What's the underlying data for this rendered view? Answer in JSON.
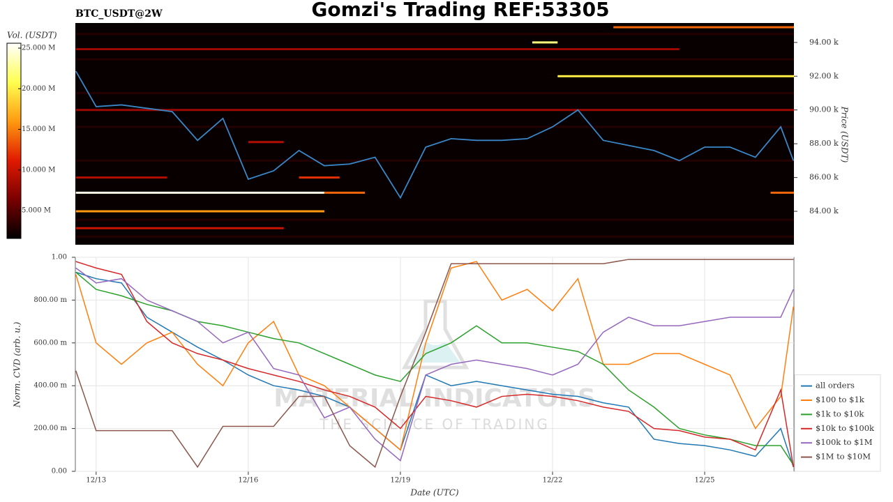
{
  "title": "Gomzi's Trading REF:53305",
  "chart_data": [
    {
      "type": "heatmap",
      "label": "BTC_USDT@2W",
      "x": [
        12.6,
        13.0,
        13.5,
        14.0,
        14.5,
        15.0,
        15.5,
        16.0,
        16.5,
        17.0,
        17.5,
        18.0,
        18.5,
        19.0,
        19.5,
        20.0,
        20.5,
        21.0,
        21.5,
        22.0,
        22.5,
        23.0,
        23.5,
        24.0,
        24.5,
        25.0,
        25.5,
        26.0,
        26.5,
        26.75
      ],
      "values": [
        92.3,
        90.2,
        90.3,
        90.1,
        89.9,
        88.2,
        89.5,
        85.9,
        86.4,
        87.6,
        86.7,
        86.8,
        87.2,
        84.8,
        87.8,
        88.3,
        88.2,
        88.2,
        88.3,
        89.0,
        90.0,
        88.2,
        87.9,
        87.6,
        87.0,
        87.8,
        87.8,
        87.2,
        89.0,
        87.0
      ],
      "color": "#3a87c8",
      "xlim": [
        12.59,
        26.76
      ],
      "y2label": "Price (USDT)",
      "y2lim": [
        82.02,
        95.15
      ],
      "y2ticks": [
        {
          "value": 84,
          "label": "84.00 k"
        },
        {
          "value": 86,
          "label": "86.00 k"
        },
        {
          "value": 88,
          "label": "88.00 k"
        },
        {
          "value": 90,
          "label": "90.00 k"
        },
        {
          "value": 92,
          "label": "92.00 k"
        },
        {
          "value": 94,
          "label": "94.00 k"
        }
      ],
      "bands": [
        {
          "y": 94.5,
          "x": [
            12.6,
            26.76
          ],
          "value": 3
        },
        {
          "y": 93.0,
          "x": [
            12.6,
            26.76
          ],
          "value": 3
        },
        {
          "y": 91.0,
          "x": [
            12.6,
            26.76
          ],
          "value": 3
        },
        {
          "y": 89.0,
          "x": [
            12.6,
            26.76
          ],
          "value": 3
        },
        {
          "y": 87.0,
          "x": [
            12.6,
            26.76
          ],
          "value": 3
        },
        {
          "y": 83.5,
          "x": [
            12.6,
            26.76
          ],
          "value": 3
        },
        {
          "y": 82.5,
          "x": [
            12.6,
            26.76
          ],
          "value": 3
        },
        {
          "y": 94.9,
          "x": [
            23.2,
            26.76
          ],
          "value": 14
        },
        {
          "y": 94.0,
          "x": [
            21.6,
            22.1
          ],
          "value": 22
        },
        {
          "y": 92.0,
          "x": [
            22.1,
            26.76
          ],
          "value": 20
        },
        {
          "y": 93.6,
          "x": [
            12.6,
            24.5
          ],
          "value": 8
        },
        {
          "y": 90.0,
          "x": [
            12.6,
            26.76
          ],
          "value": 8
        },
        {
          "y": 86.0,
          "x": [
            12.6,
            14.4
          ],
          "value": 9
        },
        {
          "y": 86.0,
          "x": [
            17.0,
            17.8
          ],
          "value": 12
        },
        {
          "y": 88.1,
          "x": [
            16.0,
            16.7
          ],
          "value": 9
        },
        {
          "y": 85.1,
          "x": [
            12.6,
            17.5
          ],
          "value": 25
        },
        {
          "y": 85.1,
          "x": [
            17.5,
            18.3
          ],
          "value": 14
        },
        {
          "y": 84.0,
          "x": [
            12.6,
            17.5
          ],
          "value": 16
        },
        {
          "y": 83.0,
          "x": [
            12.6,
            16.7
          ],
          "value": 10
        },
        {
          "y": 85.1,
          "x": [
            26.3,
            26.76
          ],
          "value": 14
        }
      ],
      "colorbar": {
        "label": "Vol. (USDT)",
        "lim": [
          1.57,
          25.6
        ],
        "ticks": [
          {
            "value": 5,
            "label": "5.000 M"
          },
          {
            "value": 10,
            "label": "10.000 M"
          },
          {
            "value": 15,
            "label": "15.000 M"
          },
          {
            "value": 20,
            "label": "20.000 M"
          },
          {
            "value": 25,
            "label": "25.000 M"
          }
        ],
        "colormap": [
          "#000000",
          "#7a0000",
          "#e01a00",
          "#ff9a10",
          "#ffff50",
          "#ffffff"
        ]
      }
    },
    {
      "type": "line",
      "xlabel": "Date (UTC)",
      "ylabel": "Norm. CVD (arb. u.)",
      "x": [
        12.6,
        13.0,
        13.5,
        14.0,
        14.5,
        15.0,
        15.5,
        16.0,
        16.5,
        17.0,
        17.5,
        18.0,
        18.5,
        19.0,
        19.5,
        20.0,
        20.5,
        21.0,
        21.5,
        22.0,
        22.5,
        23.0,
        23.5,
        24.0,
        24.5,
        25.0,
        25.5,
        26.0,
        26.5,
        26.75
      ],
      "xlim": [
        12.59,
        26.76
      ],
      "xticks": [
        {
          "value": 13,
          "label": "12/13"
        },
        {
          "value": 16,
          "label": "12/16"
        },
        {
          "value": 19,
          "label": "12/19"
        },
        {
          "value": 22,
          "label": "12/22"
        },
        {
          "value": 25,
          "label": "12/25"
        }
      ],
      "ylim": [
        0,
        1
      ],
      "yticks": [
        {
          "value": 0,
          "label": "0.00"
        },
        {
          "value": 0.2,
          "label": "200.00 m"
        },
        {
          "value": 0.4,
          "label": "400.00 m"
        },
        {
          "value": 0.6,
          "label": "600.00 m"
        },
        {
          "value": 0.8,
          "label": "800.00 m"
        },
        {
          "value": 1,
          "label": "1.00"
        }
      ],
      "grid": true,
      "legend": "lower right",
      "watermark": [
        "MATERIAL INDICATORS",
        "THE SCIENCE OF TRADING"
      ],
      "series": [
        {
          "name": "all orders",
          "color": "#1f77b4",
          "values": [
            0.93,
            0.9,
            0.88,
            0.72,
            0.65,
            0.58,
            0.52,
            0.45,
            0.4,
            0.38,
            0.35,
            0.3,
            0.2,
            0.1,
            0.45,
            0.4,
            0.42,
            0.4,
            0.38,
            0.36,
            0.35,
            0.32,
            0.3,
            0.15,
            0.13,
            0.12,
            0.1,
            0.07,
            0.2,
            0.02
          ]
        },
        {
          "name": "$100 to $1k",
          "color": "#ff7f0e",
          "values": [
            0.92,
            0.6,
            0.5,
            0.6,
            0.65,
            0.5,
            0.4,
            0.6,
            0.7,
            0.45,
            0.4,
            0.3,
            0.2,
            0.1,
            0.6,
            0.95,
            0.98,
            0.8,
            0.85,
            0.75,
            0.9,
            0.5,
            0.5,
            0.55,
            0.55,
            0.5,
            0.45,
            0.2,
            0.35,
            0.77
          ]
        },
        {
          "name": "$1k to $10k",
          "color": "#2ca02c",
          "values": [
            0.93,
            0.85,
            0.82,
            0.78,
            0.75,
            0.7,
            0.68,
            0.65,
            0.62,
            0.6,
            0.55,
            0.5,
            0.45,
            0.42,
            0.55,
            0.6,
            0.68,
            0.6,
            0.6,
            0.58,
            0.56,
            0.5,
            0.38,
            0.3,
            0.2,
            0.17,
            0.15,
            0.12,
            0.12,
            0.03
          ]
        },
        {
          "name": "$10k to $100k",
          "color": "#d62728",
          "values": [
            0.98,
            0.95,
            0.92,
            0.7,
            0.6,
            0.55,
            0.52,
            0.48,
            0.45,
            0.42,
            0.38,
            0.35,
            0.3,
            0.2,
            0.35,
            0.33,
            0.3,
            0.35,
            0.36,
            0.35,
            0.33,
            0.3,
            0.28,
            0.2,
            0.19,
            0.16,
            0.15,
            0.1,
            0.38,
            0.02
          ]
        },
        {
          "name": "$100k to $1M",
          "color": "#9467bd",
          "values": [
            0.95,
            0.88,
            0.9,
            0.8,
            0.75,
            0.7,
            0.6,
            0.65,
            0.48,
            0.45,
            0.25,
            0.3,
            0.15,
            0.05,
            0.45,
            0.5,
            0.52,
            0.5,
            0.48,
            0.45,
            0.5,
            0.65,
            0.72,
            0.68,
            0.68,
            0.7,
            0.72,
            0.72,
            0.72,
            0.85
          ]
        },
        {
          "name": "$1M to $10M",
          "color": "#8c564b",
          "values": [
            0.47,
            0.19,
            0.19,
            0.19,
            0.19,
            0.02,
            0.21,
            0.21,
            0.21,
            0.35,
            0.35,
            0.12,
            0.02,
            0.35,
            0.65,
            0.97,
            0.97,
            0.97,
            0.97,
            0.97,
            0.97,
            0.97,
            0.99,
            0.99,
            0.99,
            0.99,
            0.99,
            0.99,
            0.99,
            0.99
          ]
        }
      ]
    }
  ]
}
